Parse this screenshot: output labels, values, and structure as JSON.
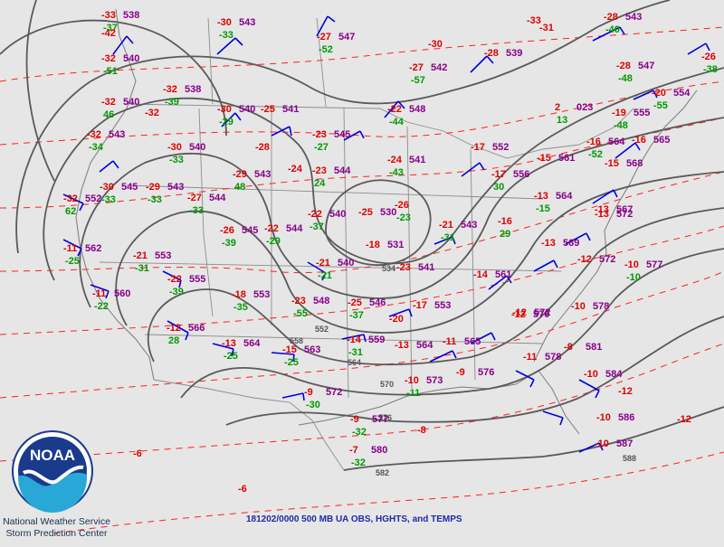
{
  "caption": "181202/0000 500 MB UA OBS, HGHTS, and TEMPS",
  "credits": {
    "line1": "National Weather Service",
    "line2": "Storm Prediction Center"
  },
  "logo": {
    "text": "NOAA",
    "colors": {
      "ring": "#ffffff",
      "sky": "#1a3a8c",
      "sea": "#29a8d8"
    }
  },
  "colors": {
    "temp": "#dd0000",
    "height": "#880088",
    "dewpoint": "#009900",
    "barb": "#0000e0",
    "contour": "#5a5a5a",
    "background": "#e6e6e6"
  },
  "contour_labels": [
    {
      "v": "552"
    },
    {
      "v": "558"
    },
    {
      "v": "564"
    },
    {
      "v": "570"
    },
    {
      "v": "576"
    },
    {
      "v": "582"
    },
    {
      "v": "588"
    },
    {
      "v": "534"
    }
  ],
  "stations": [
    {
      "t": "-33",
      "h": "538",
      "d": "-37"
    },
    {
      "t": "-42",
      "h": "",
      "d": ""
    },
    {
      "t": "-32",
      "h": "540",
      "d": "-51"
    },
    {
      "t": "-32",
      "h": "540",
      "d": "46"
    },
    {
      "t": "-32",
      "h": "543",
      "d": "-34"
    },
    {
      "t": "-32",
      "h": "538",
      "d": "-39"
    },
    {
      "t": "-32",
      "h": "",
      "d": ""
    },
    {
      "t": "-30",
      "h": "540",
      "d": "-33"
    },
    {
      "t": "-30",
      "h": "543",
      "d": "-33"
    },
    {
      "t": "-30",
      "h": "540",
      "d": "-29"
    },
    {
      "t": "-25",
      "h": "541",
      "d": ""
    },
    {
      "t": "-28",
      "h": "",
      "d": ""
    },
    {
      "t": "-27",
      "h": "547",
      "d": "-52"
    },
    {
      "t": "-30",
      "h": "",
      "d": ""
    },
    {
      "t": "-27",
      "h": "542",
      "d": "-57"
    },
    {
      "t": "-28",
      "h": "539",
      "d": ""
    },
    {
      "t": "-33",
      "h": "",
      "d": ""
    },
    {
      "t": "-31",
      "h": "",
      "d": ""
    },
    {
      "t": "-28",
      "h": "543",
      "d": "-40"
    },
    {
      "t": "-28",
      "h": "547",
      "d": "-48"
    },
    {
      "t": "-26",
      "h": "",
      "d": "-38"
    },
    {
      "t": "-20",
      "h": "554",
      "d": "-55"
    },
    {
      "t": "-19",
      "h": "555",
      "d": "-48"
    },
    {
      "t": "-16",
      "h": "564",
      "d": "-52"
    },
    {
      "t": "-16",
      "h": "565",
      "d": ""
    },
    {
      "t": "-15",
      "h": "568",
      "d": ""
    },
    {
      "t": "-22",
      "h": "548",
      "d": "-44"
    },
    {
      "t": "-23",
      "h": "545",
      "d": "-27"
    },
    {
      "t": "-23",
      "h": "544",
      "d": "24"
    },
    {
      "t": "-24",
      "h": "",
      "d": ""
    },
    {
      "t": "-29",
      "h": "543",
      "d": "48"
    },
    {
      "t": "-29",
      "h": "543",
      "d": "-33"
    },
    {
      "t": "-27",
      "h": "544",
      "d": "-33"
    },
    {
      "t": "-30",
      "h": "545",
      "d": "-33"
    },
    {
      "t": "-32",
      "h": "552",
      "d": "62"
    },
    {
      "t": "-24",
      "h": "541",
      "d": "-43"
    },
    {
      "t": "-17",
      "h": "552",
      "d": ""
    },
    {
      "t": "-17",
      "h": "556",
      "d": "30"
    },
    {
      "t": "-15",
      "h": "561",
      "d": ""
    },
    {
      "t": "-13",
      "h": "564",
      "d": "-15"
    },
    {
      "t": "-13",
      "h": "567",
      "d": ""
    },
    {
      "t": "-13",
      "h": "572",
      "d": ""
    },
    {
      "t": "-22",
      "h": "540",
      "d": "-37"
    },
    {
      "t": "-25",
      "h": "530",
      "d": ""
    },
    {
      "t": "-26",
      "h": "",
      "d": "-23"
    },
    {
      "t": "-21",
      "h": "543",
      "d": "-31"
    },
    {
      "t": "-16",
      "h": "",
      "d": "29"
    },
    {
      "t": "-13",
      "h": "569",
      "d": ""
    },
    {
      "t": "-12",
      "h": "572",
      "d": ""
    },
    {
      "t": "-10",
      "h": "577",
      "d": "-10"
    },
    {
      "t": "-26",
      "h": "545",
      "d": "-39"
    },
    {
      "t": "-22",
      "h": "544",
      "d": "-29"
    },
    {
      "t": "-18",
      "h": "531",
      "d": ""
    },
    {
      "t": "-21",
      "h": "540",
      "d": "-21"
    },
    {
      "t": "-23",
      "h": "541",
      "d": ""
    },
    {
      "t": "-14",
      "h": "561",
      "d": ""
    },
    {
      "t": "-10",
      "h": "578",
      "d": ""
    },
    {
      "t": "-11",
      "h": "562",
      "d": "-25"
    },
    {
      "t": "-11",
      "h": "560",
      "d": "-22"
    },
    {
      "t": "-21",
      "h": "553",
      "d": "-31"
    },
    {
      "t": "-22",
      "h": "555",
      "d": "-39"
    },
    {
      "t": "-18",
      "h": "553",
      "d": "-35"
    },
    {
      "t": "-23",
      "h": "548",
      "d": "-55"
    },
    {
      "t": "-25",
      "h": "546",
      "d": "-37"
    },
    {
      "t": "-20",
      "h": "",
      "d": ""
    },
    {
      "t": "-17",
      "h": "553",
      "d": ""
    },
    {
      "t": "-12",
      "h": "566",
      "d": "28"
    },
    {
      "t": "-13",
      "h": "564",
      "d": "-25"
    },
    {
      "t": "-15",
      "h": "563",
      "d": "-25"
    },
    {
      "t": "-14",
      "h": "559",
      "d": "-31"
    },
    {
      "t": "-13",
      "h": "564",
      "d": ""
    },
    {
      "t": "-11",
      "h": "565",
      "d": ""
    },
    {
      "t": "-12",
      "h": "570",
      "d": ""
    },
    {
      "t": "-12",
      "h": "572",
      "d": ""
    },
    {
      "t": "-10",
      "h": "573",
      "d": "-11"
    },
    {
      "t": "-9",
      "h": "576",
      "d": ""
    },
    {
      "t": "-11",
      "h": "578",
      "d": ""
    },
    {
      "t": "-8",
      "h": "581",
      "d": ""
    },
    {
      "t": "-9",
      "h": "572",
      "d": "-30"
    },
    {
      "t": "-10",
      "h": "584",
      "d": ""
    },
    {
      "t": "-12",
      "h": "",
      "d": ""
    },
    {
      "t": "-9",
      "h": "577",
      "d": "-32"
    },
    {
      "t": "-7",
      "h": "580",
      "d": "-32"
    },
    {
      "t": "-10",
      "h": "586",
      "d": ""
    },
    {
      "t": "-10",
      "h": "587",
      "d": ""
    },
    {
      "t": "-8",
      "h": "",
      "d": ""
    },
    {
      "t": "-6",
      "h": "",
      "d": ""
    },
    {
      "t": "-6",
      "h": "",
      "d": ""
    },
    {
      "t": "-12",
      "h": "",
      "d": ""
    },
    {
      "t": "2",
      "h": "023",
      "d": "13"
    }
  ]
}
